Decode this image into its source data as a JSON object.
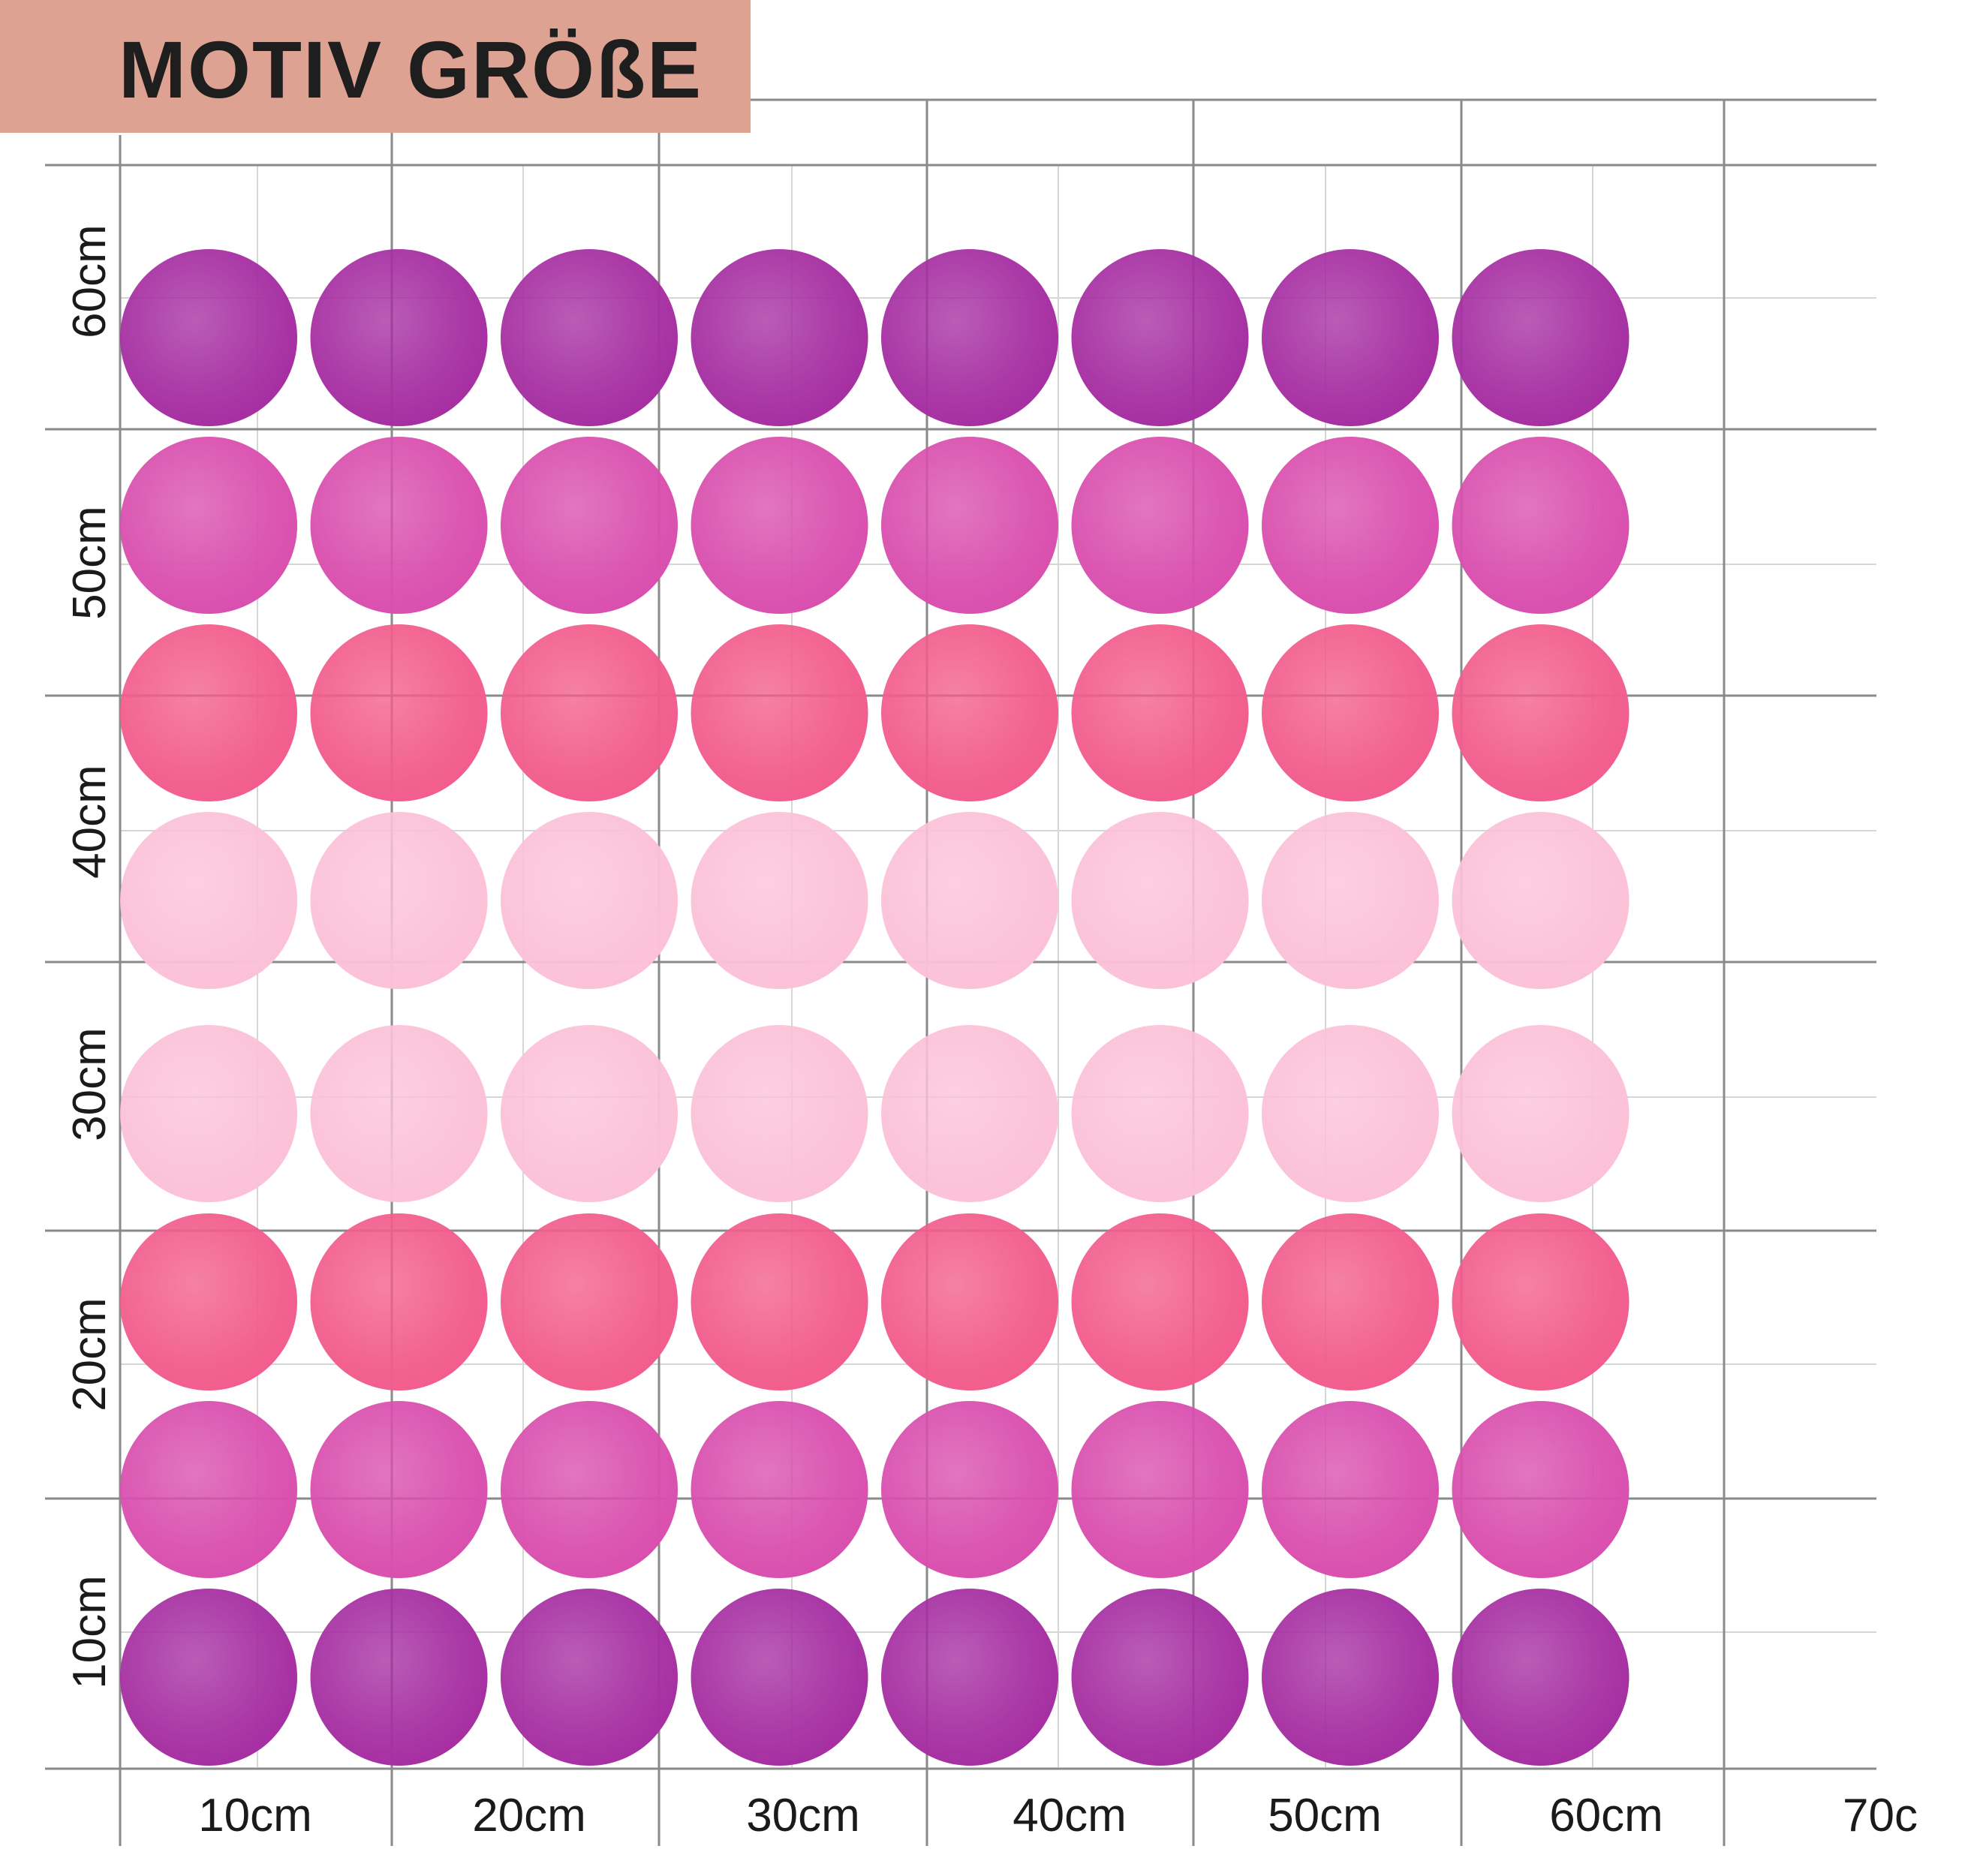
{
  "banner": {
    "title": "MOTIV GRÖßE"
  },
  "axes": {
    "x_labels": [
      "10cm",
      "20cm",
      "30cm",
      "40cm",
      "50cm",
      "60cm",
      "70c"
    ],
    "y_labels": [
      "60cm",
      "50cm",
      "40cm",
      "30cm",
      "20cm",
      "10cm"
    ]
  },
  "colors": {
    "banner": "#dea292",
    "grid_major": "#8a8a8a",
    "grid_minor": "#d6d6d6",
    "dot_rows": [
      "#a62fa2",
      "#d94fae",
      "#f25d8d",
      "#fbc1d8",
      "#fbc1d8",
      "#f25d8d",
      "#d94fae",
      "#a62fa2"
    ]
  },
  "dots": {
    "rows": 8,
    "columns": 8
  }
}
